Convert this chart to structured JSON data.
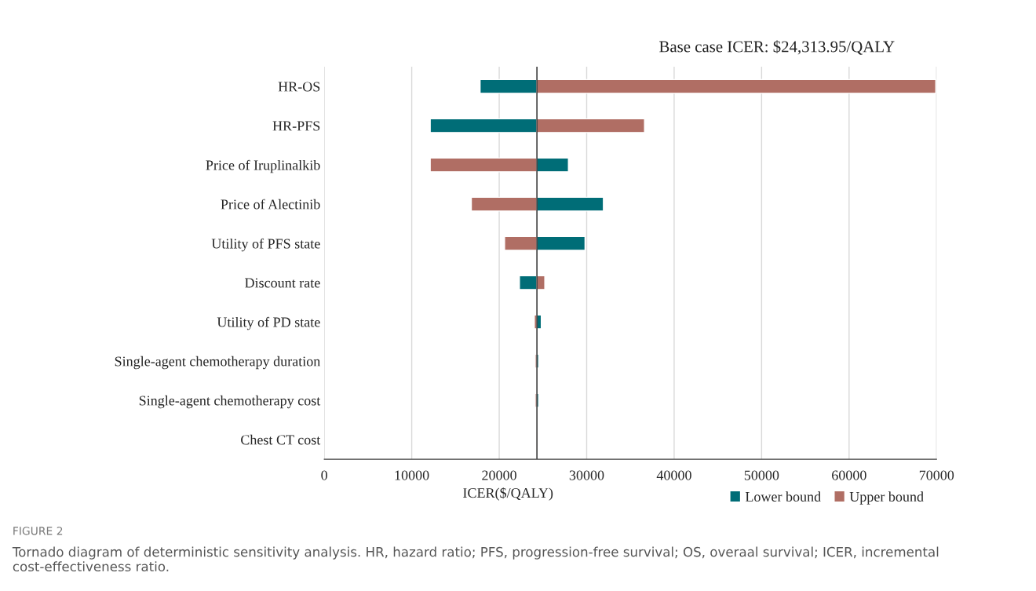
{
  "chart_data": {
    "type": "bar",
    "orientation": "horizontal",
    "xlabel": "ICER($/QALY)",
    "categories": [
      "HR-OS",
      "HR-PFS",
      "Price of Iruplinalkib",
      "Price of Alectinib",
      "Utility of PFS state",
      "Discount rate",
      "Utility of PD state",
      "Single-agent chemotherapy duration",
      "Single-agent chemotherapy cost",
      "Chest CT cost"
    ],
    "series": [
      {
        "name": "Lower bound",
        "color": "#006d77",
        "base": [
          24313.95,
          24313.95,
          24313.95,
          24313.95,
          24313.95,
          24313.95,
          24313.95,
          24313.95,
          24313.95,
          24313.95
        ],
        "values": [
          -6500,
          -12200,
          3600,
          7600,
          5500,
          -2000,
          500,
          200,
          200,
          -100
        ]
      },
      {
        "name": "Upper bound",
        "color": "#b06e64",
        "base": [
          24313.95,
          24313.95,
          24313.95,
          24313.95,
          24313.95,
          24313.95,
          24313.95,
          24313.95,
          24313.95,
          24313.95
        ],
        "values": [
          45600,
          12300,
          -12200,
          -7500,
          -3700,
          900,
          -300,
          -200,
          -200,
          100
        ]
      }
    ],
    "xlim": [
      0,
      70000
    ],
    "xticks": [
      0,
      10000,
      20000,
      30000,
      40000,
      50000,
      60000,
      70000
    ],
    "ref_lines": [
      {
        "axis": "x",
        "value": 24313.95,
        "color": "#404040"
      }
    ],
    "grid": "x",
    "legend": "bottom right",
    "annotations": [
      "Base case ICER: $24,313.95/QALY",
      "FIGURE 2",
      "Tornado diagram of deterministic sensitivity analysis. HR, hazard ratio; PFS, progression-free survival; OS, overaal survival; ICER, incremental cost-effectiveness ratio."
    ]
  }
}
